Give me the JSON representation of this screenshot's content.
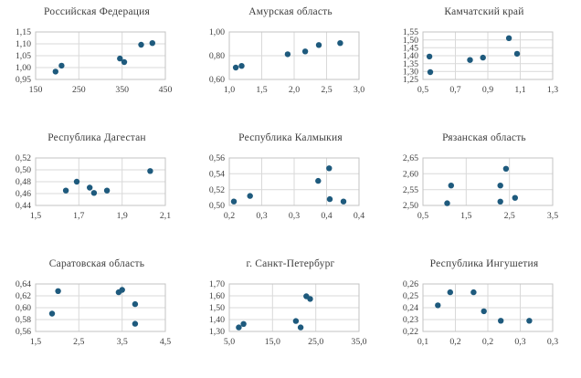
{
  "style": {
    "background_color": "#FFFFFF",
    "marker_color": "#1E5A7D",
    "gridline_color": "#D9D9D9",
    "plot_border_color": "#C3C3C3",
    "title_color": "#3D3D3D",
    "tick_label_color": "#404040"
  },
  "chart_data": [
    {
      "id": "russian-federation",
      "type": "scatter",
      "title": "Российская Федерация",
      "xlim": [
        150,
        450
      ],
      "ylim": [
        0.95,
        1.15
      ],
      "grid": true,
      "legend": false,
      "xticks": {
        "values": [
          150,
          250,
          350,
          450
        ],
        "labels": [
          "150",
          "250",
          "350",
          "450"
        ]
      },
      "yticks": {
        "values": [
          0.95,
          1.0,
          1.05,
          1.1,
          1.15
        ],
        "labels": [
          "0,95",
          "1,00",
          "1,05",
          "1,10",
          "1,15"
        ]
      },
      "points": [
        [
          196,
          0.983
        ],
        [
          210,
          1.008
        ],
        [
          345,
          1.038
        ],
        [
          355,
          1.023
        ],
        [
          394,
          1.096
        ],
        [
          420,
          1.103
        ]
      ]
    },
    {
      "id": "amur-oblast",
      "type": "scatter",
      "title": "Амурская область",
      "xlim": [
        1.0,
        3.0
      ],
      "ylim": [
        0.6,
        1.0
      ],
      "grid": true,
      "legend": false,
      "xticks": {
        "values": [
          1.0,
          1.5,
          2.0,
          2.5,
          3.0
        ],
        "labels": [
          "1,0",
          "1,5",
          "2,0",
          "2,5",
          "3,0"
        ]
      },
      "yticks": {
        "values": [
          0.6,
          0.8,
          1.0
        ],
        "labels": [
          "0,60",
          "0,80",
          "1,00"
        ]
      },
      "points": [
        [
          1.1,
          0.7
        ],
        [
          1.19,
          0.714
        ],
        [
          1.9,
          0.812
        ],
        [
          2.17,
          0.836
        ],
        [
          2.38,
          0.89
        ],
        [
          2.71,
          0.906
        ]
      ]
    },
    {
      "id": "kamchatka-krai",
      "type": "scatter",
      "title": "Камчатский край",
      "xlim": [
        0.5,
        1.3
      ],
      "ylim": [
        1.25,
        1.55
      ],
      "grid": true,
      "legend": false,
      "xticks": {
        "values": [
          0.5,
          0.7,
          0.9,
          1.1,
          1.3
        ],
        "labels": [
          "0,5",
          "0,7",
          "0,9",
          "1,1",
          "1,3"
        ]
      },
      "yticks": {
        "values": [
          1.25,
          1.3,
          1.35,
          1.4,
          1.45,
          1.5,
          1.55
        ],
        "labels": [
          "1,25",
          "1,30",
          "1,35",
          "1,40",
          "1,45",
          "1,50",
          "1,55"
        ]
      },
      "points": [
        [
          0.54,
          1.395
        ],
        [
          0.545,
          1.296
        ],
        [
          0.79,
          1.373
        ],
        [
          0.87,
          1.388
        ],
        [
          1.03,
          1.511
        ],
        [
          1.08,
          1.412
        ]
      ]
    },
    {
      "id": "republic-of-dagestan",
      "type": "scatter",
      "title": "Республика Дагестан",
      "xlim": [
        1.5,
        2.1
      ],
      "ylim": [
        0.44,
        0.52
      ],
      "grid": true,
      "legend": false,
      "xticks": {
        "values": [
          1.5,
          1.7,
          1.9,
          2.1
        ],
        "labels": [
          "1,5",
          "1,7",
          "1,9",
          "2,1"
        ]
      },
      "yticks": {
        "values": [
          0.44,
          0.46,
          0.48,
          0.5,
          0.52
        ],
        "labels": [
          "0,44",
          "0,46",
          "0,48",
          "0,50",
          "0,52"
        ]
      },
      "points": [
        [
          1.64,
          0.465
        ],
        [
          1.69,
          0.48
        ],
        [
          1.75,
          0.47
        ],
        [
          1.77,
          0.461
        ],
        [
          1.83,
          0.465
        ],
        [
          2.03,
          0.498
        ]
      ]
    },
    {
      "id": "republic-of-kalmykia",
      "type": "scatter",
      "title": "Республика Калмыкия",
      "xlim": [
        0.2,
        0.4
      ],
      "ylim": [
        0.5,
        0.56
      ],
      "grid": true,
      "legend": false,
      "xticks": {
        "values": [
          0.2,
          0.25,
          0.3,
          0.35,
          0.4
        ],
        "labels": [
          "0,2",
          "0,3",
          "0,3",
          "0,4",
          "0,4"
        ]
      },
      "yticks": {
        "values": [
          0.5,
          0.52,
          0.54,
          0.56
        ],
        "labels": [
          "0,50",
          "0,52",
          "0,54",
          "0,56"
        ]
      },
      "points": [
        [
          0.207,
          0.505
        ],
        [
          0.232,
          0.512
        ],
        [
          0.337,
          0.531
        ],
        [
          0.354,
          0.547
        ],
        [
          0.355,
          0.508
        ],
        [
          0.376,
          0.505
        ]
      ]
    },
    {
      "id": "ryazan-oblast",
      "type": "scatter",
      "title": "Рязанская область",
      "xlim": [
        0.5,
        3.5
      ],
      "ylim": [
        2.5,
        2.65
      ],
      "grid": true,
      "legend": false,
      "xticks": {
        "values": [
          0.5,
          1.5,
          2.5,
          3.5
        ],
        "labels": [
          "0,5",
          "1,5",
          "2,5",
          "3,5"
        ]
      },
      "yticks": {
        "values": [
          2.5,
          2.55,
          2.6,
          2.65
        ],
        "labels": [
          "2,50",
          "2,55",
          "2,60",
          "2,65"
        ]
      },
      "points": [
        [
          1.06,
          2.507
        ],
        [
          1.15,
          2.563
        ],
        [
          2.29,
          2.512
        ],
        [
          2.29,
          2.563
        ],
        [
          2.42,
          2.616
        ],
        [
          2.63,
          2.524
        ]
      ]
    },
    {
      "id": "saratov-oblast",
      "type": "scatter",
      "title": "Саратовская область",
      "xlim": [
        1.5,
        4.5
      ],
      "ylim": [
        0.56,
        0.64
      ],
      "grid": true,
      "legend": false,
      "xticks": {
        "values": [
          1.5,
          2.5,
          3.5,
          4.5
        ],
        "labels": [
          "1,5",
          "2,5",
          "3,5",
          "4,5"
        ]
      },
      "yticks": {
        "values": [
          0.56,
          0.58,
          0.6,
          0.62,
          0.64
        ],
        "labels": [
          "0,56",
          "0,58",
          "0,60",
          "0,62",
          "0,64"
        ]
      },
      "points": [
        [
          1.88,
          0.59
        ],
        [
          2.02,
          0.628
        ],
        [
          3.42,
          0.626
        ],
        [
          3.5,
          0.63
        ],
        [
          3.8,
          0.606
        ],
        [
          3.8,
          0.573
        ]
      ]
    },
    {
      "id": "saint-petersburg",
      "type": "scatter",
      "title": "г. Санкт-Петербург",
      "xlim": [
        5.0,
        35.0
      ],
      "ylim": [
        1.3,
        1.7
      ],
      "grid": true,
      "legend": false,
      "xticks": {
        "values": [
          5.0,
          15.0,
          25.0,
          35.0
        ],
        "labels": [
          "5,0",
          "15,0",
          "25,0",
          "35,0"
        ]
      },
      "yticks": {
        "values": [
          1.3,
          1.4,
          1.5,
          1.6,
          1.7
        ],
        "labels": [
          "1,30",
          "1,40",
          "1,50",
          "1,60",
          "1,70"
        ]
      },
      "points": [
        [
          7.2,
          1.334
        ],
        [
          8.3,
          1.363
        ],
        [
          20.4,
          1.388
        ],
        [
          21.5,
          1.334
        ],
        [
          22.8,
          1.596
        ],
        [
          23.7,
          1.574
        ]
      ]
    },
    {
      "id": "republic-of-ingushetia",
      "type": "scatter",
      "title": "Республика Ингушетия",
      "xlim": [
        0.1,
        0.3
      ],
      "ylim": [
        0.22,
        0.26
      ],
      "grid": true,
      "legend": false,
      "xticks": {
        "values": [
          0.1,
          0.15,
          0.2,
          0.25,
          0.3
        ],
        "labels": [
          "0,1",
          "0,2",
          "0,2",
          "0,3",
          "0,3"
        ]
      },
      "yticks": {
        "values": [
          0.22,
          0.23,
          0.24,
          0.25,
          0.26
        ],
        "labels": [
          "0,22",
          "0,23",
          "0,24",
          "0,25",
          "0,26"
        ]
      },
      "points": [
        [
          0.123,
          0.242
        ],
        [
          0.142,
          0.253
        ],
        [
          0.178,
          0.253
        ],
        [
          0.194,
          0.237
        ],
        [
          0.22,
          0.229
        ],
        [
          0.264,
          0.229
        ]
      ]
    }
  ]
}
